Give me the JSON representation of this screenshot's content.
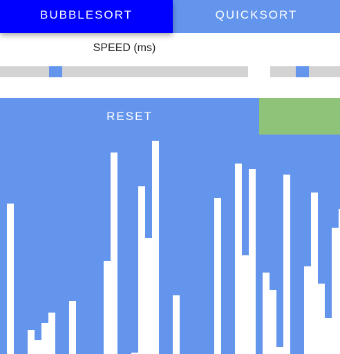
{
  "tabs": [
    {
      "label": "BUBBLESORT",
      "active": true
    },
    {
      "label": "QUICKSORT",
      "active": false
    }
  ],
  "speed": {
    "label": "SPEED (ms)",
    "slider_a_value": 0.21,
    "slider_b_value": 0.45
  },
  "controls": {
    "reset_label": "RESET"
  },
  "colors": {
    "active_tab": "#0000ff",
    "accent": "#6495ed",
    "track": "#d3d3d3",
    "go_button": "#90c37a",
    "bar": "#ffffff"
  },
  "bars": [
    0,
    218,
    0,
    0,
    35,
    20,
    45,
    60,
    0,
    0,
    77,
    0,
    0,
    0,
    0,
    135,
    292,
    0,
    0,
    2,
    243,
    168,
    309,
    0,
    0,
    85,
    0,
    0,
    0,
    0,
    0,
    226,
    0,
    0,
    276,
    143,
    268,
    0,
    118,
    93,
    10,
    260,
    0,
    0,
    127,
    234,
    102,
    52,
    183,
    210
  ]
}
